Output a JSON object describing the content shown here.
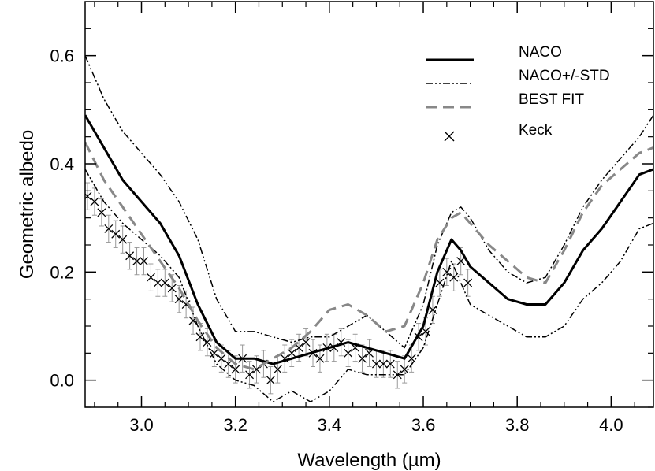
{
  "chart_data": {
    "type": "line",
    "xlabel": "Wavelength (µm)",
    "ylabel": "Geometric albedo",
    "xlim": [
      2.88,
      4.09
    ],
    "ylim": [
      -0.05,
      0.7
    ],
    "x_ticks": [
      3.0,
      3.2,
      3.4,
      3.6,
      3.8,
      4.0
    ],
    "x_tick_labels": [
      "3.0",
      "3.2",
      "3.4",
      "3.6",
      "3.8",
      "4.0"
    ],
    "y_ticks": [
      0.0,
      0.2,
      0.4,
      0.6
    ],
    "y_tick_labels": [
      "0.0",
      "0.2",
      "0.4",
      "0.6"
    ],
    "grid": false,
    "legend_position": "top-right",
    "colors": {
      "naco": "#000000",
      "std": "#000000",
      "best_fit": "#888888",
      "keck": "#000000",
      "errorbar": "#999999"
    },
    "series": [
      {
        "name": "NACO",
        "style": "solid",
        "x": [
          2.88,
          2.92,
          2.96,
          3.0,
          3.04,
          3.08,
          3.12,
          3.16,
          3.2,
          3.24,
          3.28,
          3.32,
          3.36,
          3.4,
          3.44,
          3.48,
          3.52,
          3.56,
          3.6,
          3.63,
          3.66,
          3.68,
          3.7,
          3.74,
          3.78,
          3.82,
          3.86,
          3.9,
          3.94,
          3.98,
          4.02,
          4.06,
          4.09
        ],
        "y": [
          0.49,
          0.43,
          0.37,
          0.33,
          0.29,
          0.23,
          0.14,
          0.07,
          0.04,
          0.04,
          0.03,
          0.04,
          0.05,
          0.06,
          0.07,
          0.06,
          0.05,
          0.04,
          0.1,
          0.2,
          0.26,
          0.24,
          0.21,
          0.18,
          0.15,
          0.14,
          0.14,
          0.18,
          0.24,
          0.28,
          0.33,
          0.38,
          0.39
        ]
      },
      {
        "name": "NACO+/-STD",
        "style": "dash-dot-dot",
        "role": "upper",
        "x": [
          2.88,
          2.92,
          2.96,
          3.0,
          3.04,
          3.08,
          3.12,
          3.16,
          3.2,
          3.24,
          3.28,
          3.32,
          3.36,
          3.4,
          3.44,
          3.48,
          3.52,
          3.56,
          3.6,
          3.63,
          3.66,
          3.68,
          3.7,
          3.74,
          3.78,
          3.82,
          3.86,
          3.9,
          3.94,
          3.98,
          4.02,
          4.06,
          4.09
        ],
        "y": [
          0.6,
          0.52,
          0.46,
          0.42,
          0.38,
          0.33,
          0.26,
          0.15,
          0.09,
          0.09,
          0.08,
          0.07,
          0.08,
          0.08,
          0.1,
          0.12,
          0.09,
          0.06,
          0.14,
          0.25,
          0.31,
          0.32,
          0.3,
          0.24,
          0.2,
          0.18,
          0.19,
          0.25,
          0.32,
          0.37,
          0.41,
          0.45,
          0.49
        ]
      },
      {
        "name": "",
        "style": "dash-dot-dot",
        "role": "lower",
        "x": [
          2.88,
          2.92,
          2.96,
          3.0,
          3.04,
          3.08,
          3.12,
          3.16,
          3.2,
          3.24,
          3.28,
          3.32,
          3.36,
          3.4,
          3.44,
          3.48,
          3.52,
          3.56,
          3.6,
          3.63,
          3.66,
          3.68,
          3.7,
          3.74,
          3.78,
          3.82,
          3.86,
          3.9,
          3.94,
          3.98,
          4.02,
          4.06,
          4.09
        ],
        "y": [
          0.39,
          0.33,
          0.29,
          0.26,
          0.23,
          0.19,
          0.1,
          0.03,
          0.0,
          -0.01,
          -0.04,
          -0.02,
          -0.04,
          -0.02,
          0.02,
          0.01,
          0.01,
          0.01,
          0.06,
          0.14,
          0.22,
          0.18,
          0.14,
          0.12,
          0.1,
          0.08,
          0.08,
          0.1,
          0.15,
          0.18,
          0.22,
          0.28,
          0.29
        ]
      },
      {
        "name": "BEST FIT",
        "style": "dashed",
        "x": [
          2.88,
          2.92,
          2.96,
          3.0,
          3.04,
          3.08,
          3.12,
          3.16,
          3.2,
          3.24,
          3.28,
          3.32,
          3.36,
          3.4,
          3.44,
          3.48,
          3.52,
          3.56,
          3.6,
          3.63,
          3.66,
          3.68,
          3.7,
          3.74,
          3.78,
          3.82,
          3.86,
          3.9,
          3.94,
          3.98,
          4.02,
          4.06,
          4.09
        ],
        "y": [
          0.44,
          0.37,
          0.32,
          0.27,
          0.22,
          0.17,
          0.11,
          0.06,
          0.03,
          0.02,
          0.04,
          0.06,
          0.09,
          0.13,
          0.14,
          0.12,
          0.09,
          0.1,
          0.18,
          0.26,
          0.3,
          0.31,
          0.29,
          0.25,
          0.22,
          0.19,
          0.18,
          0.24,
          0.31,
          0.36,
          0.39,
          0.42,
          0.43
        ]
      }
    ],
    "scatter": {
      "name": "Keck",
      "marker": "x",
      "error": 0.025,
      "x": [
        2.885,
        2.9,
        2.915,
        2.93,
        2.945,
        2.96,
        2.975,
        2.99,
        3.005,
        3.02,
        3.035,
        3.05,
        3.065,
        3.08,
        3.095,
        3.11,
        3.125,
        3.14,
        3.155,
        3.17,
        3.185,
        3.2,
        3.215,
        3.23,
        3.245,
        3.26,
        3.275,
        3.29,
        3.305,
        3.32,
        3.335,
        3.35,
        3.365,
        3.38,
        3.395,
        3.41,
        3.425,
        3.44,
        3.455,
        3.47,
        3.485,
        3.5,
        3.515,
        3.53,
        3.545,
        3.56,
        3.575,
        3.59,
        3.605,
        3.62,
        3.635,
        3.65,
        3.665,
        3.68,
        3.695
      ],
      "y": [
        0.34,
        0.33,
        0.31,
        0.28,
        0.27,
        0.26,
        0.23,
        0.22,
        0.22,
        0.19,
        0.18,
        0.18,
        0.17,
        0.15,
        0.14,
        0.11,
        0.08,
        0.07,
        0.05,
        0.04,
        0.03,
        0.02,
        0.04,
        0.01,
        0.02,
        0.03,
        0.0,
        0.02,
        0.04,
        0.05,
        0.06,
        0.07,
        0.05,
        0.04,
        0.06,
        0.06,
        0.07,
        0.05,
        0.06,
        0.04,
        0.05,
        0.03,
        0.03,
        0.03,
        0.01,
        0.02,
        0.04,
        0.08,
        0.09,
        0.13,
        0.18,
        0.2,
        0.19,
        0.22,
        0.18
      ]
    },
    "legend": [
      {
        "label": "NACO",
        "style": "solid"
      },
      {
        "label": "NACO+/-STD",
        "style": "dash-dot-dot"
      },
      {
        "label": "BEST FIT",
        "style": "dashed"
      },
      {
        "label": "Keck",
        "style": "x-marker"
      }
    ]
  }
}
